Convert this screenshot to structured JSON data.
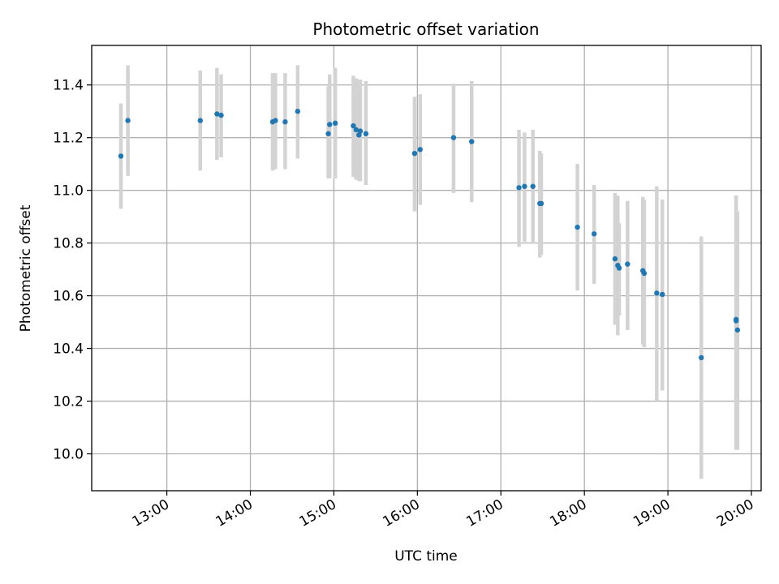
{
  "chart_data": {
    "type": "scatter",
    "title": "Photometric offset variation",
    "xlabel": "UTC time",
    "ylabel": "Photometric offset",
    "x_ticks": [
      "13:00",
      "14:00",
      "15:00",
      "16:00",
      "17:00",
      "18:00",
      "19:00",
      "20:00"
    ],
    "y_ticks": [
      "10.0",
      "10.2",
      "10.4",
      "10.6",
      "10.8",
      "11.0",
      "11.2",
      "11.4"
    ],
    "xlim": [
      "12:06",
      "20:07"
    ],
    "ylim": [
      9.86,
      11.55
    ],
    "grid": true,
    "marker_color": "#1f77b4",
    "errorbar_color": "#d3d3d3",
    "points": [
      {
        "t": "12:27",
        "y": 11.13,
        "lo": 10.93,
        "hi": 11.33
      },
      {
        "t": "12:32",
        "y": 11.265,
        "lo": 11.055,
        "hi": 11.475
      },
      {
        "t": "13:24",
        "y": 11.265,
        "lo": 11.075,
        "hi": 11.455
      },
      {
        "t": "13:36",
        "y": 11.29,
        "lo": 11.115,
        "hi": 11.465
      },
      {
        "t": "13:39",
        "y": 11.285,
        "lo": 11.125,
        "hi": 11.44
      },
      {
        "t": "14:16",
        "y": 11.26,
        "lo": 11.075,
        "hi": 11.445
      },
      {
        "t": "14:18",
        "y": 11.265,
        "lo": 11.08,
        "hi": 11.445
      },
      {
        "t": "14:25",
        "y": 11.26,
        "lo": 11.08,
        "hi": 11.445
      },
      {
        "t": "14:34",
        "y": 11.3,
        "lo": 11.12,
        "hi": 11.475
      },
      {
        "t": "14:56",
        "y": 11.215,
        "lo": 11.045,
        "hi": 11.395
      },
      {
        "t": "14:57",
        "y": 11.25,
        "lo": 11.045,
        "hi": 11.44
      },
      {
        "t": "15:01",
        "y": 11.255,
        "lo": 11.045,
        "hi": 11.465
      },
      {
        "t": "15:14",
        "y": 11.245,
        "lo": 11.05,
        "hi": 11.435
      },
      {
        "t": "15:16",
        "y": 11.23,
        "lo": 11.04,
        "hi": 11.425
      },
      {
        "t": "15:18",
        "y": 11.21,
        "lo": 11.035,
        "hi": 11.42
      },
      {
        "t": "15:19",
        "y": 11.225,
        "lo": 11.035,
        "hi": 11.42
      },
      {
        "t": "15:23",
        "y": 11.215,
        "lo": 11.02,
        "hi": 11.415
      },
      {
        "t": "15:58",
        "y": 11.14,
        "lo": 10.92,
        "hi": 11.355
      },
      {
        "t": "16:02",
        "y": 11.155,
        "lo": 10.945,
        "hi": 11.365
      },
      {
        "t": "16:26",
        "y": 11.2,
        "lo": 10.99,
        "hi": 11.405
      },
      {
        "t": "16:39",
        "y": 11.185,
        "lo": 10.955,
        "hi": 11.415
      },
      {
        "t": "17:13",
        "y": 11.01,
        "lo": 10.785,
        "hi": 11.23
      },
      {
        "t": "17:17",
        "y": 11.015,
        "lo": 10.805,
        "hi": 11.22
      },
      {
        "t": "17:23",
        "y": 11.015,
        "lo": 10.8,
        "hi": 11.23
      },
      {
        "t": "17:28",
        "y": 10.95,
        "lo": 10.745,
        "hi": 11.15
      },
      {
        "t": "17:29",
        "y": 10.95,
        "lo": 10.755,
        "hi": 11.14
      },
      {
        "t": "17:55",
        "y": 10.86,
        "lo": 10.62,
        "hi": 11.1
      },
      {
        "t": "18:07",
        "y": 10.835,
        "lo": 10.645,
        "hi": 11.02
      },
      {
        "t": "18:22",
        "y": 10.74,
        "lo": 10.49,
        "hi": 10.99
      },
      {
        "t": "18:24",
        "y": 10.715,
        "lo": 10.45,
        "hi": 10.98
      },
      {
        "t": "18:25",
        "y": 10.705,
        "lo": 10.525,
        "hi": 10.875
      },
      {
        "t": "18:31",
        "y": 10.72,
        "lo": 10.47,
        "hi": 10.96
      },
      {
        "t": "18:42",
        "y": 10.695,
        "lo": 10.415,
        "hi": 10.975
      },
      {
        "t": "18:43",
        "y": 10.685,
        "lo": 10.405,
        "hi": 10.965
      },
      {
        "t": "18:52",
        "y": 10.61,
        "lo": 10.2,
        "hi": 11.015
      },
      {
        "t": "18:56",
        "y": 10.605,
        "lo": 10.24,
        "hi": 10.965
      },
      {
        "t": "19:24",
        "y": 10.365,
        "lo": 9.905,
        "hi": 10.825
      },
      {
        "t": "19:49",
        "y": 10.51,
        "lo": 10.015,
        "hi": 10.98
      },
      {
        "t": "19:49",
        "y": 10.505,
        "lo": 10.025,
        "hi": 10.98
      },
      {
        "t": "19:50",
        "y": 10.47,
        "lo": 10.015,
        "hi": 10.92
      }
    ]
  }
}
